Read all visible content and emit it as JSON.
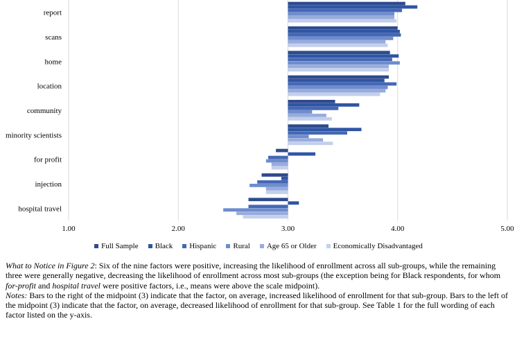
{
  "chart_data": {
    "type": "bar",
    "orientation": "horizontal",
    "categories": [
      "report",
      "scans",
      "home",
      "location",
      "community",
      "minority scientists",
      "for profit",
      "injection",
      "hospital travel"
    ],
    "series": [
      {
        "name": "Full Sample",
        "color": "#2f4b8e",
        "values": [
          4.07,
          4.0,
          3.93,
          3.92,
          3.43,
          3.37,
          2.89,
          2.76,
          2.64
        ]
      },
      {
        "name": "Black",
        "color": "#2f55a4",
        "values": [
          4.18,
          4.02,
          4.01,
          3.88,
          3.65,
          3.67,
          3.25,
          2.94,
          3.1
        ]
      },
      {
        "name": "Hispanic",
        "color": "#4568b5",
        "values": [
          4.04,
          4.03,
          3.95,
          3.99,
          3.46,
          3.54,
          2.82,
          2.72,
          2.64
        ]
      },
      {
        "name": "Rural",
        "color": "#6f8cce",
        "values": [
          3.97,
          3.96,
          4.02,
          3.91,
          3.22,
          3.19,
          2.8,
          2.65,
          2.41
        ]
      },
      {
        "name": "Age 65 or Older",
        "color": "#97acdc",
        "values": [
          3.97,
          3.89,
          3.92,
          3.89,
          3.35,
          3.32,
          2.85,
          2.8,
          2.53
        ]
      },
      {
        "name": "Economically Disadvantaged",
        "color": "#c3cfec",
        "values": [
          3.99,
          3.91,
          3.92,
          3.84,
          3.4,
          3.41,
          2.85,
          2.8,
          2.59
        ]
      }
    ],
    "x_ticks": [
      "1.00",
      "2.00",
      "3.00",
      "4.00",
      "5.00"
    ],
    "xlim": [
      1,
      5
    ],
    "gridlines": true,
    "legend_position": "bottom"
  },
  "caption": {
    "fig_label": "What to Notice in Figure 2",
    "para1_a": ": Six of the nine factors were positive, increasing the likelihood of enrollment across all sub-groups, while the remaining three were generally negative, decreasing the likelihood of enrollment across most sub-groups (the exception being for Black respondents, for whom ",
    "em1": "for-profit",
    "para1_b": " and ",
    "em2": "hospital travel",
    "para1_c": " were positive factors, i.e., means were above the scale midpoint).",
    "notes_label": "Notes:",
    "notes_text": " Bars to the right of the midpoint (3) indicate that the factor, on average, increased likelihood of enrollment for that sub-group. Bars to the left of the midpoint (3) indicate that the factor, on average, decreased likelihood of enrollment for that sub-group. See Table 1 for the full wording of each factor listed on the y-axis."
  }
}
